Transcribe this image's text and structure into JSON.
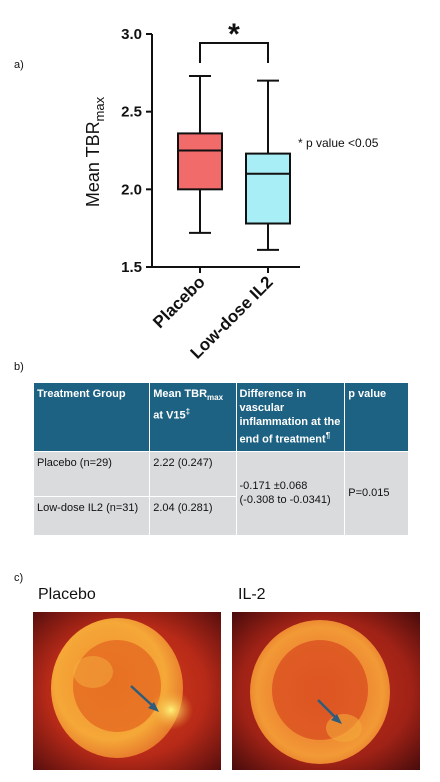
{
  "panels": {
    "a": "a)",
    "b": "b)",
    "c": "c)"
  },
  "chart_data": {
    "type": "box",
    "ylabel_main": "Mean TBR",
    "ylabel_sub": "max",
    "ylim": [
      1.5,
      3.0
    ],
    "yticks": [
      1.5,
      2.0,
      2.5,
      3.0
    ],
    "ytick_labels": [
      "1.5",
      "2.0",
      "2.5",
      "3.0"
    ],
    "categories": [
      "Placebo",
      "Low-dose IL2"
    ],
    "boxes": [
      {
        "category": "Placebo",
        "min": 1.72,
        "q1": 2.0,
        "median": 2.25,
        "q3": 2.36,
        "max": 2.73,
        "color": "#f26b6b"
      },
      {
        "category": "Low-dose IL2",
        "min": 1.61,
        "q1": 1.78,
        "median": 2.1,
        "q3": 2.23,
        "max": 2.7,
        "color": "#a8eef6"
      }
    ],
    "significance_marker": "*",
    "annotation": "* p value <0.05",
    "grid": false
  },
  "table": {
    "headers": {
      "col1": "Treatment Group",
      "col2_pre": "Mean TBR",
      "col2_sub": "max",
      "col2_post": " at V15",
      "col2_sup": "‡",
      "col3": "Difference in vascular inflammation at the end of treatment",
      "col3_sup": "¶",
      "col4": "p value"
    },
    "rows": [
      {
        "group": "Placebo (n=29)",
        "mean": "2.22 (0.247)"
      },
      {
        "group": "Low-dose IL2 (n=31)",
        "mean": "2.04 (0.281)"
      }
    ],
    "difference": "-0.171 ±0.068 (-0.308 to -0.0341)",
    "p_value": "P=0.015"
  },
  "images": {
    "left_label": "Placebo",
    "right_label": "IL-2"
  }
}
